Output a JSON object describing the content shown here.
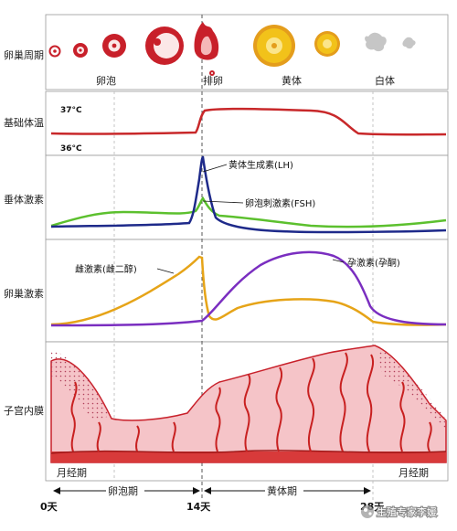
{
  "rows": {
    "ovarian_cycle": "卵巢周期",
    "basal_temp": "基础体温",
    "pituitary": "垂体激素",
    "ovarian_hormone": "卵巢激素",
    "endometrium": "子宫内膜"
  },
  "phases": {
    "follicle": "卵泡",
    "ovulation": "排卵",
    "corpus_luteum": "黄体",
    "corpus_albicans": "白体"
  },
  "temperature": {
    "high": "37°C",
    "low": "36°C"
  },
  "hormones": {
    "lh": "黄体生成素(LH)",
    "fsh": "卵泡刺激素(FSH)",
    "estrogen": "雌激素(雌二醇)",
    "progesterone": "孕激素(孕酮)"
  },
  "colors": {
    "temp_line": "#c8282a",
    "lh": "#1e2a8a",
    "fsh": "#5cc02e",
    "estrogen": "#e6a418",
    "progesterone": "#7a2ec0",
    "endometrium_fill": "#f5c4c8",
    "vessel": "#c82020",
    "follicle_red": "#c8202a",
    "luteum_yellow": "#f2c21a"
  },
  "bottom": {
    "menses_left": "月经期",
    "follicular_phase": "卵泡期",
    "luteal_phase": "黄体期",
    "menses_right": "月经期",
    "day0": "0天",
    "day14": "14天",
    "day28": "28天"
  },
  "watermark": "生殖专家李媛"
}
